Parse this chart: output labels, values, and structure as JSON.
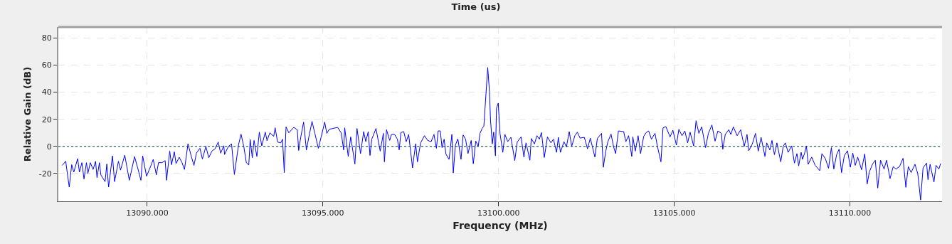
{
  "chart_data": {
    "type": "line",
    "title": "Time (us)",
    "xlabel": "Frequency (MHz)",
    "ylabel": "Relative Gain (dB)",
    "xlim": [
      13087.47,
      13112.62
    ],
    "ylim": [
      -40.5,
      88
    ],
    "xticks": [
      {
        "value": 13090,
        "label": "13090.000"
      },
      {
        "value": 13095,
        "label": "13095.000"
      },
      {
        "value": 13100,
        "label": "13100.000"
      },
      {
        "value": 13105,
        "label": "13105.000"
      },
      {
        "value": 13110,
        "label": "13110.000"
      }
    ],
    "yticks": [
      -20,
      0,
      20,
      40,
      60,
      80
    ],
    "grid": true,
    "marker": "none",
    "line_style": "solid",
    "ref_lines": [
      {
        "axis": "y",
        "value": 0,
        "color": "#004040",
        "line_style": "dotted"
      }
    ],
    "x": [
      13087.58,
      13087.68,
      13087.78,
      13087.85,
      13087.91,
      13088.02,
      13088.07,
      13088.14,
      13088.2,
      13088.27,
      13088.31,
      13088.38,
      13088.46,
      13088.53,
      13088.57,
      13088.64,
      13088.68,
      13088.8,
      13088.85,
      13088.9,
      13089.01,
      13089.07,
      13089.18,
      13089.24,
      13089.36,
      13089.42,
      13089.49,
      13089.64,
      13089.75,
      13089.82,
      13089.87,
      13089.98,
      13090.1,
      13090.17,
      13090.26,
      13090.32,
      13090.42,
      13090.51,
      13090.55,
      13090.64,
      13090.69,
      13090.77,
      13090.82,
      13090.91,
      13090.99,
      13091.06,
      13091.16,
      13091.26,
      13091.33,
      13091.4,
      13091.5,
      13091.57,
      13091.67,
      13091.75,
      13091.84,
      13091.93,
      13092.02,
      13092.09,
      13092.18,
      13092.2,
      13092.31,
      13092.4,
      13092.48,
      13092.6,
      13092.67,
      13092.75,
      13092.82,
      13092.89,
      13092.93,
      13092.99,
      13093.04,
      13093.12,
      13093.19,
      13093.26,
      13093.36,
      13093.41,
      13093.49,
      13093.6,
      13093.64,
      13093.71,
      13093.8,
      13093.85,
      13093.9,
      13093.95,
      13094.03,
      13094.17,
      13094.27,
      13094.31,
      13094.37,
      13094.45,
      13094.53,
      13094.6,
      13094.69,
      13094.77,
      13094.87,
      13094.95,
      13095.05,
      13095.11,
      13095.18,
      13095.28,
      13095.42,
      13095.52,
      13095.59,
      13095.62,
      13095.72,
      13095.79,
      13095.91,
      13095.97,
      13096.07,
      13096.16,
      13096.22,
      13096.29,
      13096.34,
      13096.39,
      13096.51,
      13096.63,
      13096.72,
      13096.75,
      13096.81,
      13096.9,
      13096.95,
      13097.04,
      13097.12,
      13097.17,
      13097.22,
      13097.3,
      13097.37,
      13097.44,
      13097.55,
      13097.64,
      13097.69,
      13097.78,
      13097.89,
      13097.98,
      13098.08,
      13098.16,
      13098.23,
      13098.28,
      13098.34,
      13098.39,
      13098.45,
      13098.5,
      13098.59,
      13098.67,
      13098.71,
      13098.77,
      13098.84,
      13098.93,
      13098.99,
      13099.06,
      13099.13,
      13099.22,
      13099.28,
      13099.35,
      13099.42,
      13099.47,
      13099.53,
      13099.58,
      13099.64,
      13099.69,
      13099.74,
      13099.77,
      13099.82,
      13099.86,
      13099.91,
      13099.94,
      13099.99,
      13100.04,
      13100.12,
      13100.18,
      13100.26,
      13100.35,
      13100.46,
      13100.53,
      13100.64,
      13100.72,
      13100.78,
      13100.89,
      13100.93,
      13101.02,
      13101.09,
      13101.16,
      13101.22,
      13101.3,
      13101.39,
      13101.49,
      13101.56,
      13101.65,
      13101.7,
      13101.76,
      13101.86,
      13101.93,
      13102.01,
      13102.08,
      13102.17,
      13102.24,
      13102.32,
      13102.44,
      13102.53,
      13102.61,
      13102.74,
      13102.81,
      13102.93,
      13102.98,
      13103.05,
      13103.11,
      13103.2,
      13103.27,
      13103.33,
      13103.41,
      13103.56,
      13103.62,
      13103.7,
      13103.79,
      13103.82,
      13103.89,
      13103.97,
      13104.04,
      13104.13,
      13104.2,
      13104.27,
      13104.35,
      13104.45,
      13104.52,
      13104.62,
      13104.68,
      13104.76,
      13104.88,
      13104.96,
      13105.06,
      13105.13,
      13105.22,
      13105.3,
      13105.38,
      13105.45,
      13105.55,
      13105.62,
      13105.7,
      13105.78,
      13105.89,
      13105.97,
      13106.07,
      13106.16,
      13106.24,
      13106.34,
      13106.38,
      13106.45,
      13106.55,
      13106.61,
      13106.68,
      13106.79,
      13106.89,
      13106.99,
      13107.07,
      13107.12,
      13107.22,
      13107.31,
      13107.39,
      13107.47,
      13107.58,
      13107.63,
      13107.72,
      13107.78,
      13107.85,
      13107.92,
      13108.03,
      13108.1,
      13108.16,
      13108.24,
      13108.34,
      13108.42,
      13108.49,
      13108.54,
      13108.61,
      13108.65,
      13108.71,
      13108.76,
      13108.81,
      13108.91,
      13109.01,
      13109.14,
      13109.2,
      13109.3,
      13109.39,
      13109.47,
      13109.54,
      13109.62,
      13109.69,
      13109.76,
      13109.84,
      13109.93,
      13110.01,
      13110.08,
      13110.15,
      13110.22,
      13110.33,
      13110.42,
      13110.49,
      13110.55,
      13110.64,
      13110.72,
      13110.79,
      13110.87,
      13110.97,
      13111.04,
      13111.14,
      13111.23,
      13111.31,
      13111.41,
      13111.51,
      13111.59,
      13111.66,
      13111.74,
      13111.85,
      13111.93,
      13112.01,
      13112.08,
      13112.18,
      13112.22,
      13112.28,
      13112.39,
      13112.45,
      13112.53,
      13112.58
    ],
    "series": [
      {
        "color": "#0000ff",
        "values": [
          -14,
          -11,
          -30,
          -13.5,
          -19,
          -9,
          -19,
          -12,
          -24,
          -12,
          -20,
          -12,
          -17,
          -11,
          -23,
          -12,
          -21,
          -26,
          -13,
          -30,
          -7,
          -26,
          -11,
          -17.5,
          -6.5,
          -15,
          -25,
          -7.5,
          -18,
          -25,
          -7,
          -22,
          -14.5,
          -9.6,
          -21,
          -12,
          -12,
          -10.5,
          -25,
          -3.5,
          -13.5,
          -4,
          -12.6,
          -8,
          -12,
          -17,
          2,
          -8,
          -14,
          -5,
          -1.4,
          -9.3,
          0,
          -8.4,
          -3.5,
          -1.8,
          3.2,
          -5,
          0.5,
          -6,
          0,
          1.8,
          -20.7,
          1.4,
          9,
          -0.4,
          -12,
          -13.7,
          5,
          -8.4,
          4.4,
          -7.4,
          10.5,
          0.4,
          10.5,
          4.2,
          10,
          7.4,
          13.7,
          3.2,
          2.6,
          5.3,
          -19.3,
          14.4,
          10,
          14,
          12.3,
          -3,
          7,
          17.9,
          -2.6,
          7,
          18.4,
          9.6,
          -1.4,
          7,
          17.9,
          9.6,
          12.6,
          13.2,
          14,
          10,
          -2.6,
          13.7,
          -7.4,
          7,
          -13,
          13.2,
          -5.3,
          10.9,
          3.5,
          10.9,
          -6.7,
          5.3,
          13.2,
          -3.5,
          9.6,
          -11.4,
          12.3,
          4.4,
          8.8,
          8.8,
          5.3,
          -2.6,
          10.2,
          10.9,
          3.5,
          8.8,
          -15.8,
          2,
          -11.4,
          2.6,
          7.9,
          4.4,
          3.5,
          8.8,
          -1.4,
          11.4,
          11.4,
          -0.9,
          5.3,
          -5.6,
          -9.6,
          8.8,
          -19.6,
          0.9,
          5.6,
          -9.6,
          8.4,
          5.3,
          -5.3,
          4.4,
          -12.8,
          3.9,
          0,
          9.6,
          13.2,
          14.9,
          38.6,
          58.2,
          40.4,
          19.3,
          1.8,
          10.5,
          -7,
          28.1,
          31.9,
          9.6,
          -4.4,
          8.8,
          3.5,
          6.7,
          -10.5,
          3.2,
          7,
          -7.9,
          2.6,
          -10.2,
          5.8,
          1.8,
          7.9,
          5.3,
          10.2,
          -8.2,
          7,
          2.6,
          5.3,
          -4.4,
          6.7,
          -4.4,
          3.5,
          -0.4,
          10.9,
          0,
          7.9,
          10.5,
          6.1,
          6.7,
          -1.8,
          6.1,
          -7.9,
          5.8,
          9.6,
          -15.4,
          -3.5,
          3.5,
          9.1,
          0,
          -5.3,
          11.4,
          10.9,
          3.5,
          7.9,
          -7.4,
          7,
          -3.5,
          7.9,
          -5.3,
          7.4,
          10.2,
          11.4,
          5.3,
          9.6,
          0,
          -11.4,
          13.7,
          14.6,
          7,
          11.9,
          0.9,
          12.6,
          7.9,
          11.4,
          2.6,
          10.5,
          0.4,
          18.9,
          9.6,
          14.4,
          -0.9,
          9.6,
          15.8,
          3.9,
          11.4,
          9.6,
          -2.1,
          8.8,
          12.3,
          8.8,
          14.4,
          7.9,
          12.3,
          0,
          8.8,
          -3.2,
          1.8,
          9.6,
          -3.5,
          6.7,
          -7.4,
          2.6,
          -2.6,
          4.4,
          -6.1,
          2.6,
          -11.4,
          0,
          2.6,
          -4.4,
          0.4,
          -12.3,
          -5.3,
          -14.4,
          -4.4,
          -9.6,
          -4.9,
          0.4,
          -13.2,
          -7.9,
          -14,
          -17.9,
          -5.3,
          -9.1,
          -16.1,
          -0.9,
          -16.7,
          -6.1,
          -2.1,
          -19.3,
          -6.7,
          -3.2,
          -15.4,
          -4.9,
          -14,
          -7.9,
          -17.2,
          -5.6,
          -27.7,
          -18.9,
          -13.2,
          -10.2,
          -30.7,
          -10.2,
          -16.7,
          -10.2,
          -23.7,
          -14.9,
          -16.7,
          -14.9,
          -8.8,
          -30.2,
          -14.9,
          -19.3,
          -13.2,
          -20.2,
          -39.5,
          -15.8,
          -12.3,
          -24.6,
          -13.2,
          -26.3,
          -14,
          -16.7,
          -12.6
        ]
      }
    ]
  }
}
